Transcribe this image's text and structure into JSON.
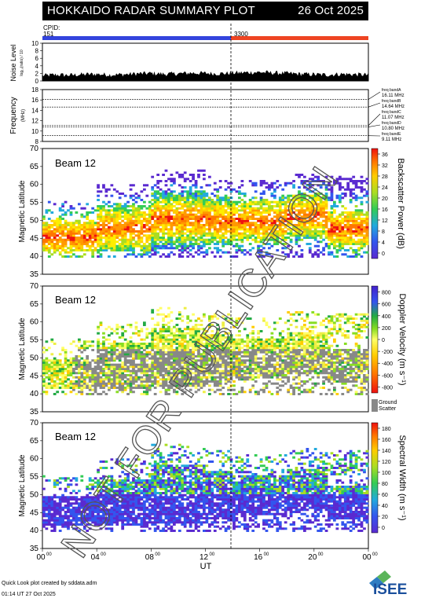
{
  "header": {
    "title": "HOKKAIDO RADAR SUMMARY PLOT",
    "date": "26 Oct 2025",
    "cpid_label": "CPID:",
    "cpid_left": "151",
    "cpid_right": "3300",
    "colors": {
      "cpid_left": "#3344dd",
      "cpid_right": "#ee4422"
    }
  },
  "noise_panel": {
    "ylabel": "Noise Level",
    "yunit": "log₁₀(ratio) / 10",
    "ylim": [
      0,
      10
    ],
    "yticks": [
      "0",
      "2",
      "4",
      "6",
      "8",
      "10"
    ]
  },
  "freq_panel": {
    "ylabel": "Frequency",
    "yunit": "(MHz)",
    "ylim": [
      8,
      18
    ],
    "yticks": [
      "8",
      "10",
      "12",
      "14",
      "16",
      "18"
    ],
    "bands": [
      {
        "name": "freq bandA",
        "value": "16.11 MHz"
      },
      {
        "name": "freq bandB",
        "value": "14.64 MHz"
      },
      {
        "name": "freq bandC",
        "value": "11.07 MHz"
      },
      {
        "name": "freq bandD",
        "value": "10.80 MHz"
      },
      {
        "name": "freq bandE",
        "value": "9.11 MHz"
      }
    ]
  },
  "beam_panels": [
    {
      "beam_label": "Beam 12",
      "ylabel": "Magnetic Latitude",
      "scale_label": "Backscatter Power (dB)",
      "scale_ticks": [
        "0",
        "4",
        "8",
        "12",
        "16",
        "20",
        "24",
        "28",
        "32",
        "36"
      ]
    },
    {
      "beam_label": "Beam 12",
      "ylabel": "Magnetic Latitude",
      "scale_label": "Doppler Velocity (m s⁻¹)",
      "scale_ticks": [
        "-800",
        "-600",
        "-400",
        "-200",
        "0",
        "200",
        "400",
        "600",
        "800"
      ],
      "ground_label_1": "Ground",
      "ground_label_2": "Scatter"
    },
    {
      "beam_label": "Beam 12",
      "ylabel": "Magnetic Latitude",
      "scale_label": "Spectral Width (m s⁻¹)",
      "scale_ticks": [
        "0",
        "20",
        "40",
        "60",
        "80",
        "100",
        "120",
        "140",
        "160",
        "180"
      ]
    }
  ],
  "lat_ticks": [
    "35",
    "40",
    "45",
    "50",
    "55",
    "60",
    "65",
    "70"
  ],
  "x_axis": {
    "label": "UT",
    "ticks": [
      "00",
      "04",
      "08",
      "12",
      "16",
      "20",
      "00"
    ],
    "tick_sup": "00"
  },
  "watermark": "NOT FOR PUBLICATION",
  "footer": {
    "line1": "Quick Look plot created by sddata.adm",
    "line2": "01:14 UT 27 Oct 2025",
    "logo": "ISEE"
  },
  "chart_data": [
    {
      "type": "area",
      "title": "",
      "ylabel": "Noise Level",
      "ylim": [
        0,
        10
      ],
      "xlim": [
        0,
        24
      ],
      "x_unit": "UT hours",
      "series": [
        {
          "values": [
            1.2,
            1.4,
            1.3,
            1.5,
            1.6,
            1.4,
            1.5,
            1.7,
            1.8,
            1.6,
            1.7,
            1.9,
            1.8,
            1.7,
            1.9,
            2.0,
            2.1,
            1.9,
            1.8,
            1.6,
            1.5,
            1.4,
            1.6,
            1.5,
            1.4
          ]
        }
      ]
    },
    {
      "type": "line",
      "ylabel": "Frequency",
      "ylim": [
        8,
        18
      ],
      "xlim": [
        0,
        24
      ],
      "series": [
        {
          "name": "freq bandA",
          "values": [
            16.11,
            16.11
          ]
        },
        {
          "name": "freq bandB",
          "values": [
            14.64,
            14.64
          ]
        },
        {
          "name": "freq bandC",
          "values": [
            11.07,
            11.07
          ]
        },
        {
          "name": "freq bandD",
          "values": [
            10.8,
            10.8
          ]
        },
        {
          "name": "freq bandE",
          "values": [
            9.11,
            9.11
          ]
        }
      ]
    },
    {
      "type": "heatmap",
      "ylabel": "Magnetic Latitude",
      "ylim": [
        35,
        70
      ],
      "xlim": [
        0,
        24
      ],
      "colorbar": "Backscatter Power (dB)",
      "clim": [
        0,
        36
      ],
      "mode_change_ut": 14.0
    },
    {
      "type": "heatmap",
      "ylabel": "Magnetic Latitude",
      "ylim": [
        35,
        70
      ],
      "xlim": [
        0,
        24
      ],
      "colorbar": "Doppler Velocity (m s⁻¹)",
      "clim": [
        -800,
        800
      ],
      "mode_change_ut": 14.0
    },
    {
      "type": "heatmap",
      "ylabel": "Magnetic Latitude",
      "ylim": [
        35,
        70
      ],
      "xlim": [
        0,
        24
      ],
      "colorbar": "Spectral Width (m s⁻¹)",
      "clim": [
        0,
        180
      ],
      "mode_change_ut": 14.0
    }
  ]
}
